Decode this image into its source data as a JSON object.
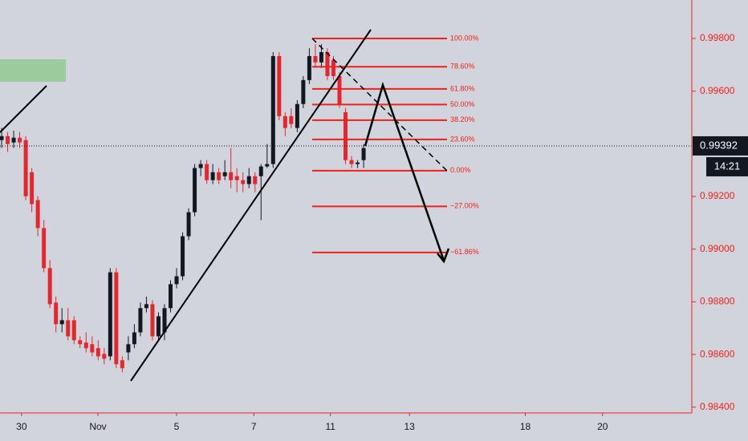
{
  "chart_data": {
    "type": "candlestick",
    "x": [
      0,
      1,
      2,
      3,
      4,
      5,
      6,
      7,
      8,
      9,
      10,
      11,
      12,
      13,
      14,
      15,
      16,
      17,
      18,
      19,
      20,
      21,
      22,
      23,
      24,
      25,
      26,
      27,
      28,
      29,
      30,
      31,
      32,
      33,
      34,
      35,
      36,
      37,
      38,
      39,
      40,
      41,
      42,
      43,
      44,
      45,
      46,
      47,
      48,
      49,
      50,
      51,
      52,
      53,
      54,
      55,
      56,
      57,
      58,
      59,
      60
    ],
    "open": [
      0.99414,
      0.99429,
      0.99405,
      0.99423,
      0.99414,
      0.99292,
      0.99186,
      0.9908,
      0.98928,
      0.98797,
      0.98715,
      0.9873,
      0.9873,
      0.98654,
      0.98645,
      0.98639,
      0.98624,
      0.98602,
      0.98593,
      0.98912,
      0.98578,
      0.98608,
      0.98639,
      0.98684,
      0.98776,
      0.98791,
      0.98669,
      0.98684,
      0.98776,
      0.98867,
      0.98897,
      0.99049,
      0.9914,
      0.99308,
      0.99323,
      0.99262,
      0.99292,
      0.99277,
      0.99292,
      0.99277,
      0.99262,
      0.99247,
      0.99277,
      0.99277,
      0.99314,
      0.99323,
      0.99733,
      0.99505,
      0.99505,
      0.9946,
      0.99551,
      0.99642,
      0.99733,
      0.99709,
      0.99748,
      0.99718,
      0.99657,
      0.9952,
      0.99338,
      0.99323,
      0.99338
    ],
    "high": [
      0.9946,
      0.99445,
      0.9945,
      0.99445,
      0.99429,
      0.99308,
      0.99201,
      0.9911,
      0.98958,
      0.9882,
      0.98776,
      0.98776,
      0.98745,
      0.98669,
      0.98684,
      0.98669,
      0.98654,
      0.98624,
      0.98928,
      0.98928,
      0.98593,
      0.98669,
      0.98715,
      0.98797,
      0.9882,
      0.98806,
      0.9876,
      0.98791,
      0.98882,
      0.98928,
      0.99064,
      0.99155,
      0.99323,
      0.99338,
      0.99338,
      0.99323,
      0.99308,
      0.99338,
      0.99384,
      0.99308,
      0.99292,
      0.99308,
      0.99292,
      0.99323,
      0.99399,
      0.99748,
      0.99748,
      0.9952,
      0.99535,
      0.99566,
      0.99657,
      0.99763,
      0.99778,
      0.99778,
      0.99763,
      0.99733,
      0.99672,
      0.99536,
      0.99353,
      0.99338,
      0.99399
    ],
    "low": [
      0.99384,
      0.99369,
      0.99384,
      0.99384,
      0.99186,
      0.9914,
      0.99049,
      0.98912,
      0.98776,
      0.98684,
      0.98684,
      0.98654,
      0.98639,
      0.98624,
      0.98608,
      0.98593,
      0.98578,
      0.98563,
      0.98578,
      0.98548,
      0.98532,
      0.98578,
      0.98624,
      0.98669,
      0.9876,
      0.98654,
      0.98654,
      0.98654,
      0.9876,
      0.98851,
      0.98882,
      0.99034,
      0.99125,
      0.99277,
      0.99247,
      0.99247,
      0.99247,
      0.99262,
      0.99231,
      0.99216,
      0.99216,
      0.99231,
      0.99216,
      0.9911,
      0.99308,
      0.99308,
      0.9949,
      0.99429,
      0.9946,
      0.99444,
      0.99535,
      0.99627,
      0.99688,
      0.99688,
      0.99642,
      0.99642,
      0.99536,
      0.99323,
      0.99308,
      0.99308,
      0.99308
    ],
    "close": [
      0.99429,
      0.99399,
      0.99423,
      0.99405,
      0.99201,
      0.99171,
      0.9908,
      0.98928,
      0.98791,
      0.98715,
      0.9873,
      0.98669,
      0.98654,
      0.98639,
      0.98624,
      0.98608,
      0.98593,
      0.98584,
      0.98912,
      0.98563,
      0.98548,
      0.98639,
      0.98684,
      0.98776,
      0.98791,
      0.98669,
      0.98745,
      0.98776,
      0.98867,
      0.98897,
      0.99049,
      0.9914,
      0.99308,
      0.99323,
      0.99262,
      0.99292,
      0.99262,
      0.99292,
      0.99262,
      0.99262,
      0.99247,
      0.99277,
      0.99247,
      0.99314,
      0.99323,
      0.99733,
      0.99505,
      0.9946,
      0.99475,
      0.99551,
      0.99642,
      0.99733,
      0.99709,
      0.99748,
      0.99657,
      0.99657,
      0.99551,
      0.99338,
      0.99323,
      0.99329,
      0.99384
    ],
    "up_color": "#131722",
    "down_color": "#e0282e",
    "xlim": [
      -0.27,
      114.4
    ],
    "xticks": [
      {
        "value": 3.3,
        "label": "30"
      },
      {
        "value": 15.96,
        "label": "Nov"
      },
      {
        "value": 29.0,
        "label": "5"
      },
      {
        "value": 41.8,
        "label": "7"
      },
      {
        "value": 54.5,
        "label": "11"
      },
      {
        "value": 67.6,
        "label": "13"
      },
      {
        "value": 86.8,
        "label": "18"
      },
      {
        "value": 99.6,
        "label": "20"
      }
    ],
    "ylim": [
      0.98378,
      0.99946
    ],
    "yticks": [
      {
        "value": 0.998,
        "label": "0.99800"
      },
      {
        "value": 0.996,
        "label": "0.99600"
      },
      {
        "value": 0.992,
        "label": "0.99200"
      },
      {
        "value": 0.99,
        "label": "0.99000"
      },
      {
        "value": 0.988,
        "label": "0.98800"
      },
      {
        "value": 0.986,
        "label": "0.98600"
      },
      {
        "value": 0.984,
        "label": "0.98400"
      }
    ],
    "last_price": 0.99392,
    "countdown": "14:21",
    "fibonacci": {
      "high": 0.998,
      "low": 0.99298,
      "levels": [
        {
          "value": 100,
          "label": "100.00%"
        },
        {
          "value": 78.6,
          "label": "78.60%"
        },
        {
          "value": 61.8,
          "label": "61.80%"
        },
        {
          "value": 50,
          "label": "50.00%"
        },
        {
          "value": 38.2,
          "label": "38.20%"
        },
        {
          "value": 23.6,
          "label": "23.60%"
        },
        {
          "value": 0,
          "label": "0.00%"
        },
        {
          "value": -27,
          "label": "−27.00%"
        },
        {
          "value": -61.86,
          "label": "−61.86%"
        }
      ],
      "color": "#f0201a"
    }
  }
}
